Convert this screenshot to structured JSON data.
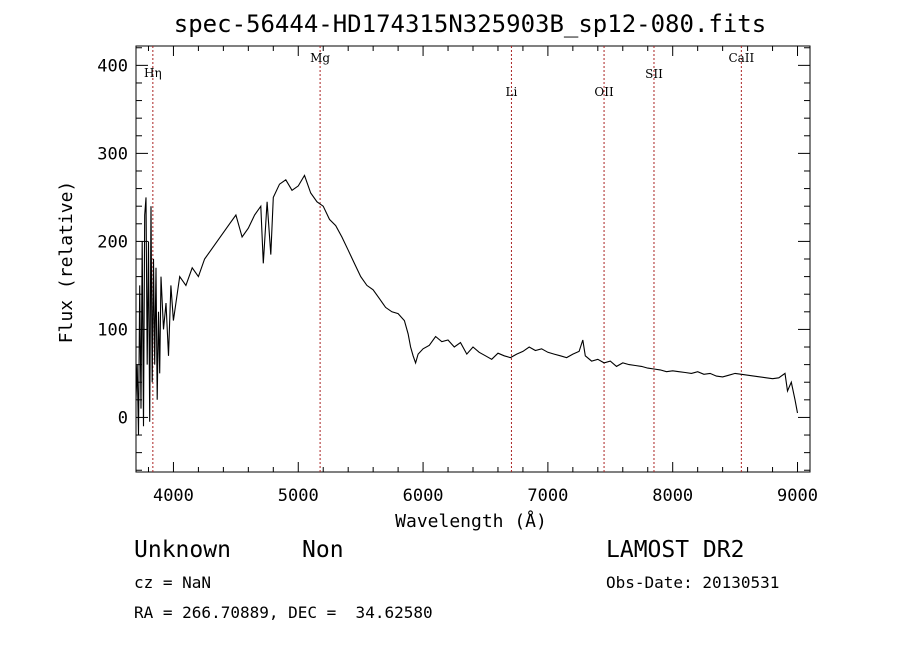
{
  "chart_data": {
    "type": "line",
    "title": "spec-56444-HD174315N325903B_sp12-080.fits",
    "xlabel": "Wavelength (Å)",
    "ylabel": "Flux (relative)",
    "xlim": [
      3700,
      9100
    ],
    "ylim": [
      -62,
      422
    ],
    "xticks": [
      4000,
      5000,
      6000,
      7000,
      8000,
      9000
    ],
    "yticks": [
      0,
      100,
      200,
      300,
      400
    ],
    "line_color": "#000000",
    "grid": false,
    "lines": [
      {
        "label": "Hη",
        "x": 3835
      },
      {
        "label": "Mg",
        "x": 5175
      },
      {
        "label": "Li",
        "x": 6708
      },
      {
        "label": "OII",
        "x": 7450
      },
      {
        "label": "SII",
        "x": 7850
      },
      {
        "label": "CaII",
        "x": 8550
      }
    ],
    "marker_line_color": "#aa2222",
    "series": [
      {
        "x": [
          3700,
          3710,
          3720,
          3730,
          3740,
          3750,
          3760,
          3770,
          3780,
          3790,
          3800,
          3810,
          3820,
          3830,
          3840,
          3850,
          3860,
          3870,
          3880,
          3890,
          3900,
          3920,
          3940,
          3960,
          3980,
          4000,
          4050,
          4100,
          4150,
          4200,
          4250,
          4300,
          4350,
          4400,
          4450,
          4500,
          4550,
          4600,
          4650,
          4700,
          4720,
          4750,
          4780,
          4800,
          4850,
          4900,
          4950,
          5000,
          5050,
          5100,
          5150,
          5200,
          5250,
          5300,
          5350,
          5400,
          5450,
          5500,
          5550,
          5600,
          5650,
          5700,
          5750,
          5800,
          5850,
          5880,
          5900,
          5920,
          5940,
          5960,
          6000,
          6050,
          6100,
          6150,
          6200,
          6250,
          6300,
          6350,
          6400,
          6450,
          6500,
          6550,
          6600,
          6650,
          6700,
          6750,
          6800,
          6850,
          6900,
          6950,
          7000,
          7050,
          7100,
          7150,
          7200,
          7250,
          7280,
          7300,
          7350,
          7400,
          7450,
          7500,
          7550,
          7600,
          7650,
          7700,
          7750,
          7800,
          7850,
          7900,
          7950,
          8000,
          8050,
          8100,
          8150,
          8200,
          8250,
          8300,
          8350,
          8400,
          8450,
          8500,
          8550,
          8600,
          8650,
          8700,
          8750,
          8800,
          8850,
          8900,
          8920,
          8950,
          8980,
          9000
        ],
        "y": [
          20,
          60,
          -20,
          150,
          10,
          200,
          -10,
          230,
          250,
          60,
          200,
          -5,
          240,
          40,
          180,
          60,
          170,
          20,
          120,
          50,
          160,
          100,
          130,
          70,
          150,
          110,
          160,
          150,
          170,
          160,
          180,
          190,
          200,
          210,
          220,
          230,
          205,
          215,
          230,
          240,
          175,
          245,
          185,
          250,
          265,
          270,
          258,
          263,
          275,
          255,
          245,
          240,
          225,
          218,
          205,
          190,
          175,
          160,
          150,
          145,
          135,
          125,
          120,
          118,
          110,
          95,
          80,
          70,
          62,
          72,
          78,
          82,
          92,
          86,
          88,
          80,
          85,
          72,
          80,
          74,
          70,
          66,
          73,
          70,
          68,
          72,
          75,
          80,
          76,
          78,
          74,
          72,
          70,
          68,
          72,
          75,
          88,
          70,
          64,
          66,
          62,
          64,
          58,
          62,
          60,
          59,
          58,
          56,
          55,
          54,
          52,
          53,
          52,
          51,
          50,
          52,
          49,
          50,
          47,
          46,
          48,
          50,
          49,
          48,
          47,
          46,
          45,
          44,
          45,
          50,
          30,
          40,
          20,
          5
        ]
      }
    ]
  },
  "footer": {
    "object_class": "Unknown",
    "object_subclass": "Non",
    "redshift": "cz = NaN",
    "coords": "RA = 266.70889, DEC =  34.62580",
    "survey": "LAMOST DR2",
    "obs_date": "Obs-Date: 20130531"
  }
}
